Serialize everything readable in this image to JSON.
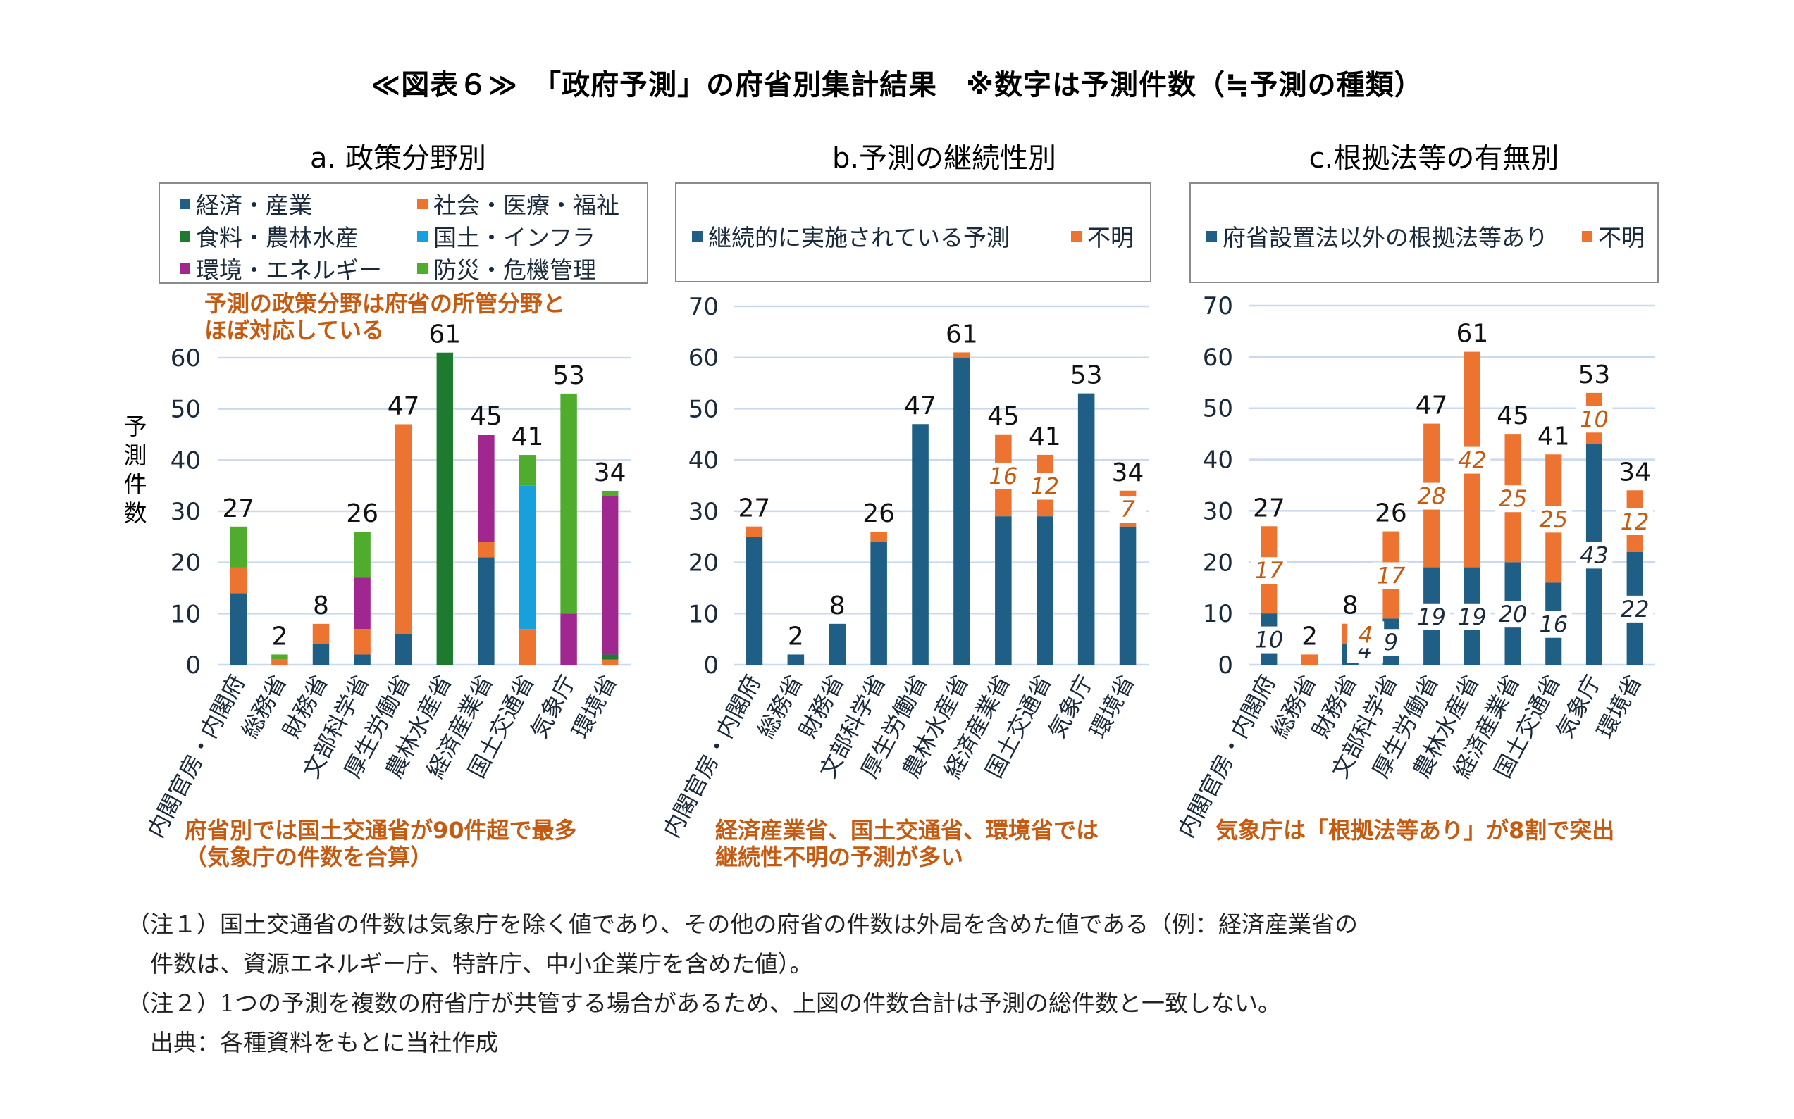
{
  "title": "≪図表６≫　「政府予測」の府省別集計結果　※数字は予測件数（≒予測の種類）",
  "ministries": [
    "内閣官房・内閣府",
    "総務省",
    "財務省",
    "文部科学省",
    "厚生労働省",
    "農林水産省",
    "経済産業省",
    "国土交通省",
    "気象庁",
    "環境省"
  ],
  "colors": {
    "economy": "#1f5f86",
    "social": "#ed7330",
    "food": "#1e7a2e",
    "infra": "#17a0dc",
    "environment": "#a0278f",
    "disaster": "#4fac2c",
    "continuous": "#1f5f86",
    "lawbased": "#1f5f86",
    "unknown": "#ed7330",
    "annotation": "#c55a11",
    "gridline": "#c9d9ee",
    "axis_text": "#1a2a3a"
  },
  "chart_data": [
    {
      "id": "a",
      "type": "bar",
      "stacked": true,
      "title": "a. 政策分野別",
      "ylabel": "予測件数",
      "ylim": [
        0,
        60
      ],
      "yticks": [
        0,
        10,
        20,
        30,
        40,
        50,
        60
      ],
      "grid": true,
      "legend_position": "top",
      "categories": [
        "内閣官房・内閣府",
        "総務省",
        "財務省",
        "文部科学省",
        "厚生労働省",
        "農林水産省",
        "経済産業省",
        "国土交通省",
        "気象庁",
        "環境省"
      ],
      "series": [
        {
          "name": "経済・産業",
          "key": "economy",
          "values": [
            14,
            0,
            4,
            2,
            6,
            0,
            21,
            0,
            0,
            0
          ]
        },
        {
          "name": "社会・医療・福祉",
          "key": "social",
          "values": [
            5,
            1,
            4,
            5,
            41,
            0,
            3,
            7,
            0,
            1
          ]
        },
        {
          "name": "食料・農林水産",
          "key": "food",
          "values": [
            0,
            0,
            0,
            0,
            0,
            61,
            0,
            0,
            0,
            1
          ]
        },
        {
          "name": "国土・インフラ",
          "key": "infra",
          "values": [
            0,
            0,
            0,
            0,
            0,
            0,
            0,
            28,
            0,
            0
          ]
        },
        {
          "name": "環境・エネルギー",
          "key": "environment",
          "values": [
            0,
            0,
            0,
            10,
            0,
            0,
            21,
            0,
            10,
            31
          ]
        },
        {
          "name": "防災・危機管理",
          "key": "disaster",
          "values": [
            8,
            1,
            0,
            9,
            0,
            0,
            0,
            6,
            43,
            1
          ]
        }
      ],
      "legend_order": [
        "economy",
        "social",
        "food",
        "infra",
        "environment",
        "disaster"
      ],
      "totals": [
        27,
        2,
        8,
        26,
        47,
        61,
        45,
        41,
        53,
        34
      ],
      "segment_labels": [],
      "annotation_top": [
        "予測の政策分野は府省の所管分野と",
        "ほぼ対応している"
      ],
      "annotation_bottom": [
        "府省別では国土交通省が90件超で最多",
        "（気象庁の件数を合算）"
      ]
    },
    {
      "id": "b",
      "type": "bar",
      "stacked": true,
      "title": "b.予測の継続性別",
      "ylabel": "",
      "ylim": [
        0,
        70
      ],
      "yticks": [
        0,
        10,
        20,
        30,
        40,
        50,
        60,
        70
      ],
      "grid": true,
      "legend_position": "top",
      "categories": [
        "内閣官房・内閣府",
        "総務省",
        "財務省",
        "文部科学省",
        "厚生労働省",
        "農林水産省",
        "経済産業省",
        "国土交通省",
        "気象庁",
        "環境省"
      ],
      "series": [
        {
          "name": "継続的に実施されている予測",
          "key": "continuous",
          "values": [
            25,
            2,
            8,
            24,
            47,
            60,
            29,
            29,
            53,
            27
          ]
        },
        {
          "name": "不明",
          "key": "unknown",
          "values": [
            2,
            0,
            0,
            2,
            0,
            1,
            16,
            12,
            0,
            7
          ]
        }
      ],
      "legend_order": [
        "continuous",
        "unknown"
      ],
      "totals": [
        27,
        2,
        8,
        26,
        47,
        61,
        45,
        41,
        53,
        34
      ],
      "segment_labels": [
        {
          "series": "unknown",
          "index": 6,
          "text": "16"
        },
        {
          "series": "unknown",
          "index": 7,
          "text": "12"
        },
        {
          "series": "unknown",
          "index": 9,
          "text": "7"
        }
      ],
      "annotation_top": [],
      "annotation_bottom": [
        "経済産業省、国土交通省、環境省では",
        "継続性不明の予測が多い"
      ]
    },
    {
      "id": "c",
      "type": "bar",
      "stacked": true,
      "title": "c.根拠法等の有無別",
      "ylabel": "",
      "ylim": [
        0,
        70
      ],
      "yticks": [
        0,
        10,
        20,
        30,
        40,
        50,
        60,
        70
      ],
      "grid": true,
      "legend_position": "top",
      "categories": [
        "内閣官房・内閣府",
        "総務省",
        "財務省",
        "文部科学省",
        "厚生労働省",
        "農林水産省",
        "経済産業省",
        "国土交通省",
        "気象庁",
        "環境省"
      ],
      "series": [
        {
          "name": "府省設置法以外の根拠法等あり",
          "key": "lawbased",
          "values": [
            10,
            0,
            4,
            9,
            19,
            19,
            20,
            16,
            43,
            22
          ]
        },
        {
          "name": "不明",
          "key": "unknown",
          "values": [
            17,
            2,
            4,
            17,
            28,
            42,
            25,
            25,
            10,
            12
          ]
        }
      ],
      "legend_order": [
        "lawbased",
        "unknown"
      ],
      "totals": [
        27,
        2,
        8,
        26,
        47,
        61,
        45,
        41,
        53,
        34
      ],
      "segment_labels": [
        {
          "series": "lawbased",
          "index": 0,
          "text": "10"
        },
        {
          "series": "lawbased",
          "index": 2,
          "text": "4"
        },
        {
          "series": "lawbased",
          "index": 3,
          "text": "9"
        },
        {
          "series": "lawbased",
          "index": 4,
          "text": "19"
        },
        {
          "series": "lawbased",
          "index": 5,
          "text": "19"
        },
        {
          "series": "lawbased",
          "index": 6,
          "text": "20"
        },
        {
          "series": "lawbased",
          "index": 7,
          "text": "16"
        },
        {
          "series": "lawbased",
          "index": 8,
          "text": "43"
        },
        {
          "series": "lawbased",
          "index": 9,
          "text": "22"
        },
        {
          "series": "unknown",
          "index": 0,
          "text": "17"
        },
        {
          "series": "unknown",
          "index": 2,
          "text": "4"
        },
        {
          "series": "unknown",
          "index": 3,
          "text": "17"
        },
        {
          "series": "unknown",
          "index": 4,
          "text": "28"
        },
        {
          "series": "unknown",
          "index": 5,
          "text": "42"
        },
        {
          "series": "unknown",
          "index": 6,
          "text": "25"
        },
        {
          "series": "unknown",
          "index": 7,
          "text": "25"
        },
        {
          "series": "unknown",
          "index": 8,
          "text": "10"
        },
        {
          "series": "unknown",
          "index": 9,
          "text": "12"
        }
      ],
      "annotation_top": [],
      "annotation_bottom": [
        "気象庁は「根拠法等あり」が8割で突出"
      ]
    }
  ],
  "footnotes": [
    "（注１）国土交通省の件数は気象庁を除く値であり、その他の府省の件数は外局を含めた値である（例：経済産業省の",
    "　件数は、資源エネルギー庁、特許庁、中小企業庁を含めた値）。",
    "（注２）1つの予測を複数の府省庁が共管する場合があるため、上図の件数合計は予測の総件数と一致しない。",
    "　出典：各種資料をもとに当社作成"
  ]
}
